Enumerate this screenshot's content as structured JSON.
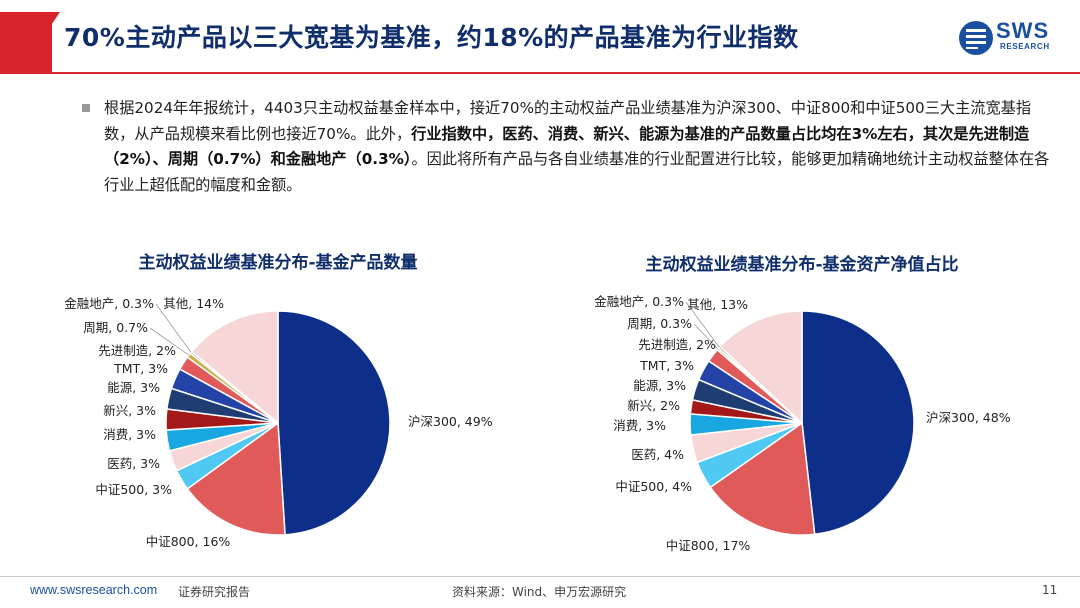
{
  "header": {
    "title": "70%主动产品以三大宽基为基准，约18%的产品基准为行业指数",
    "logo_text": "SWS",
    "logo_sub": "RESEARCH"
  },
  "body": {
    "p1": "根据2024年年报统计，4403只主动权益基金样本中，接近70%的主动权益产品业绩基准为沪深300、中证800和中证500三大主流宽基指数，从产品规模来看比例也接近70%。此外，",
    "bold": "行业指数中，医药、消费、新兴、能源为基准的产品数量占比均在3%左右，其次是先进制造（2%）、周期（0.7%）和金融地产（0.3%）",
    "p2": "。因此将所有产品与各自业绩基准的行业配置进行比较，能够更加精确地统计主动权益整体在各行业上超低配的幅度和金额。"
  },
  "footer": {
    "url": "www.swsresearch.com",
    "report": "证券研究报告",
    "source": "资料来源：Wind、申万宏源研究",
    "page": "11"
  },
  "colors": {
    "title_navy": "#0f2e6b",
    "accent_red": "#d9232a",
    "logo_blue": "#1a4fa0"
  },
  "chart_data": [
    {
      "type": "pie",
      "title": "主动权益业绩基准分布-基金产品数量",
      "slices": [
        {
          "label": "沪深300, 49%",
          "value": 49,
          "color": "#0d2f8a"
        },
        {
          "label": "中证800, 16%",
          "value": 16,
          "color": "#e05a5a"
        },
        {
          "label": "中证500, 3%",
          "value": 3,
          "color": "#4fc9f2"
        },
        {
          "label": "医药, 3%",
          "value": 3,
          "color": "#f6d6d6"
        },
        {
          "label": "消费, 3%",
          "value": 3,
          "color": "#18a7e0"
        },
        {
          "label": "新兴, 3%",
          "value": 3,
          "color": "#a31818"
        },
        {
          "label": "能源, 3%",
          "value": 3,
          "color": "#1f3d73"
        },
        {
          "label": "TMT, 3%",
          "value": 3,
          "color": "#2343a6"
        },
        {
          "label": "先进制造, 2%",
          "value": 2,
          "color": "#e05a5a"
        },
        {
          "label": "周期, 0.7%",
          "value": 0.7,
          "color": "#c7b24a"
        },
        {
          "label": "金融地产, 0.3%",
          "value": 0.3,
          "color": "#888888"
        },
        {
          "label": "其他, 14%",
          "value": 14,
          "color": "#f6d6d6"
        }
      ]
    },
    {
      "type": "pie",
      "title": "主动权益业绩基准分布-基金资产净值占比",
      "slices": [
        {
          "label": "沪深300, 48%",
          "value": 48,
          "color": "#0d2f8a"
        },
        {
          "label": "中证800, 17%",
          "value": 17,
          "color": "#e05a5a"
        },
        {
          "label": "中证500, 4%",
          "value": 4,
          "color": "#4fc9f2"
        },
        {
          "label": "医药, 4%",
          "value": 4,
          "color": "#f6d6d6"
        },
        {
          "label": "消费, 3%",
          "value": 3,
          "color": "#18a7e0"
        },
        {
          "label": "新兴, 2%",
          "value": 2,
          "color": "#a31818"
        },
        {
          "label": "能源, 3%",
          "value": 3,
          "color": "#1f3d73"
        },
        {
          "label": "TMT, 3%",
          "value": 3,
          "color": "#2343a6"
        },
        {
          "label": "先进制造, 2%",
          "value": 2,
          "color": "#e05a5a"
        },
        {
          "label": "周期, 0.3%",
          "value": 0.3,
          "color": "#c7b24a"
        },
        {
          "label": "金融地产, 0.3%",
          "value": 0.3,
          "color": "#888888"
        },
        {
          "label": "其他, 13%",
          "value": 13,
          "color": "#f6d6d6"
        }
      ]
    }
  ]
}
